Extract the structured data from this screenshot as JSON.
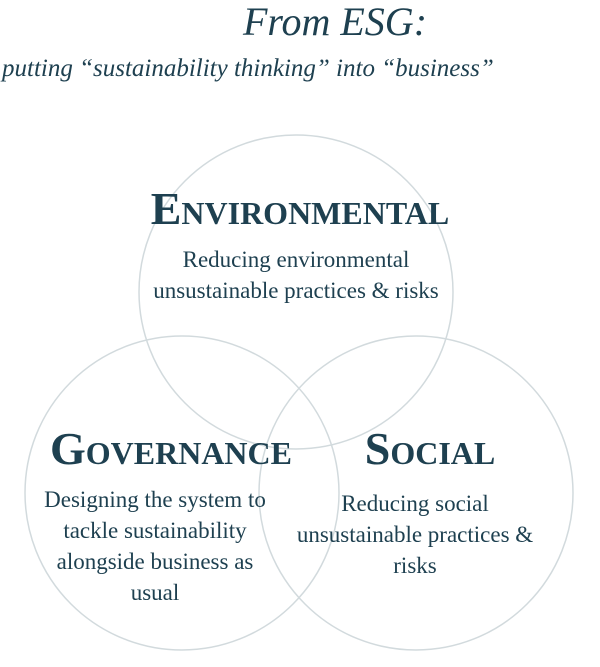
{
  "title": "From ESG:",
  "subtitle": "putting “sustainability thinking” into “business”",
  "circles": {
    "environmental": {
      "heading": "Environmental",
      "description": "Reducing environmental unsustainable practices & risks"
    },
    "governance": {
      "heading": "Governance",
      "description": "Designing the system to tackle sustainability alongside business as usual"
    },
    "social": {
      "heading": "Social",
      "description": "Reducing social unsustainable practices & risks"
    }
  },
  "colors": {
    "text": "#1e4050",
    "circle_stroke": "#d2dadd"
  }
}
